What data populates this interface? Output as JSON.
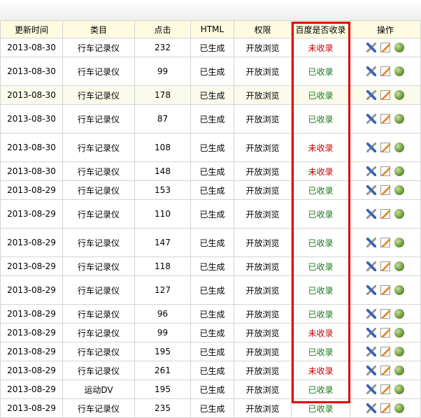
{
  "headers": [
    "更新时间",
    "类目",
    "点击",
    "HTML",
    "权限",
    "百度是否收录",
    "操作"
  ],
  "colors": {
    "indexed": "#187818",
    "not_indexed": "#cc0000",
    "highlight_box": "#e00000"
  },
  "icons": [
    "tool-icon",
    "edit-icon",
    "globe-icon"
  ],
  "rows": [
    {
      "date": "2013-08-30",
      "cat": "行车记录仪",
      "clicks": "232",
      "html": "已生成",
      "perm": "开放浏览",
      "baidu": "未收录"
    },
    {
      "date": "2013-08-30",
      "cat": "行车记录仪",
      "clicks": "99",
      "html": "已生成",
      "perm": "开放浏览",
      "baidu": "已收录"
    },
    {
      "date": "2013-08-30",
      "cat": "行车记录仪",
      "clicks": "178",
      "html": "已生成",
      "perm": "开放浏览",
      "baidu": "已收录"
    },
    {
      "date": "2013-08-30",
      "cat": "行车记录仪",
      "clicks": "87",
      "html": "已生成",
      "perm": "开放浏览",
      "baidu": "已收录"
    },
    {
      "date": "2013-08-30",
      "cat": "行车记录仪",
      "clicks": "108",
      "html": "已生成",
      "perm": "开放浏览",
      "baidu": "未收录"
    },
    {
      "date": "2013-08-30",
      "cat": "行车记录仪",
      "clicks": "148",
      "html": "已生成",
      "perm": "开放浏览",
      "baidu": "未收录"
    },
    {
      "date": "2013-08-29",
      "cat": "行车记录仪",
      "clicks": "153",
      "html": "已生成",
      "perm": "开放浏览",
      "baidu": "已收录"
    },
    {
      "date": "2013-08-29",
      "cat": "行车记录仪",
      "clicks": "110",
      "html": "已生成",
      "perm": "开放浏览",
      "baidu": "已收录"
    },
    {
      "date": "2013-08-29",
      "cat": "行车记录仪",
      "clicks": "147",
      "html": "已生成",
      "perm": "开放浏览",
      "baidu": "已收录"
    },
    {
      "date": "2013-08-29",
      "cat": "行车记录仪",
      "clicks": "118",
      "html": "已生成",
      "perm": "开放浏览",
      "baidu": "已收录"
    },
    {
      "date": "2013-08-29",
      "cat": "行车记录仪",
      "clicks": "127",
      "html": "已生成",
      "perm": "开放浏览",
      "baidu": "已收录"
    },
    {
      "date": "2013-08-29",
      "cat": "行车记录仪",
      "clicks": "96",
      "html": "已生成",
      "perm": "开放浏览",
      "baidu": "已收录"
    },
    {
      "date": "2013-08-29",
      "cat": "行车记录仪",
      "clicks": "99",
      "html": "已生成",
      "perm": "开放浏览",
      "baidu": "未收录"
    },
    {
      "date": "2013-08-29",
      "cat": "行车记录仪",
      "clicks": "195",
      "html": "已生成",
      "perm": "开放浏览",
      "baidu": "已收录"
    },
    {
      "date": "2013-08-29",
      "cat": "行车记录仪",
      "clicks": "261",
      "html": "已生成",
      "perm": "开放浏览",
      "baidu": "未收录"
    },
    {
      "date": "2013-08-29",
      "cat": "运动DV",
      "clicks": "195",
      "html": "已生成",
      "perm": "开放浏览",
      "baidu": "已收录"
    },
    {
      "date": "2013-08-29",
      "cat": "行车记录仪",
      "clicks": "235",
      "html": "已生成",
      "perm": "开放浏览",
      "baidu": "已收录"
    }
  ]
}
